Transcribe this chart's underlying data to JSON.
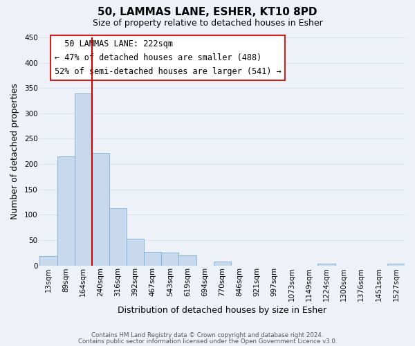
{
  "title": "50, LAMMAS LANE, ESHER, KT10 8PD",
  "subtitle": "Size of property relative to detached houses in Esher",
  "xlabel": "Distribution of detached houses by size in Esher",
  "ylabel": "Number of detached properties",
  "bar_labels": [
    "13sqm",
    "89sqm",
    "164sqm",
    "240sqm",
    "316sqm",
    "392sqm",
    "467sqm",
    "543sqm",
    "619sqm",
    "694sqm",
    "770sqm",
    "846sqm",
    "921sqm",
    "997sqm",
    "1073sqm",
    "1149sqm",
    "1224sqm",
    "1300sqm",
    "1376sqm",
    "1451sqm",
    "1527sqm"
  ],
  "bar_values": [
    18,
    215,
    340,
    222,
    113,
    53,
    26,
    25,
    20,
    0,
    7,
    0,
    0,
    0,
    0,
    0,
    3,
    0,
    0,
    0,
    3
  ],
  "bar_color": "#c9d9ed",
  "bar_edge_color": "#7bafd4",
  "vline_color": "#cc0000",
  "vline_bar_index": 2,
  "annotation_title": "50 LAMMAS LANE: 222sqm",
  "annotation_line1": "← 47% of detached houses are smaller (488)",
  "annotation_line2": "52% of semi-detached houses are larger (541) →",
  "ylim": [
    0,
    450
  ],
  "footer1": "Contains HM Land Registry data © Crown copyright and database right 2024.",
  "footer2": "Contains public sector information licensed under the Open Government Licence v3.0.",
  "background_color": "#eef2f8",
  "grid_color": "#d8e2f0",
  "title_fontsize": 11,
  "subtitle_fontsize": 9,
  "axis_label_fontsize": 9,
  "tick_fontsize": 7.5,
  "annotation_fontsize": 8.5
}
